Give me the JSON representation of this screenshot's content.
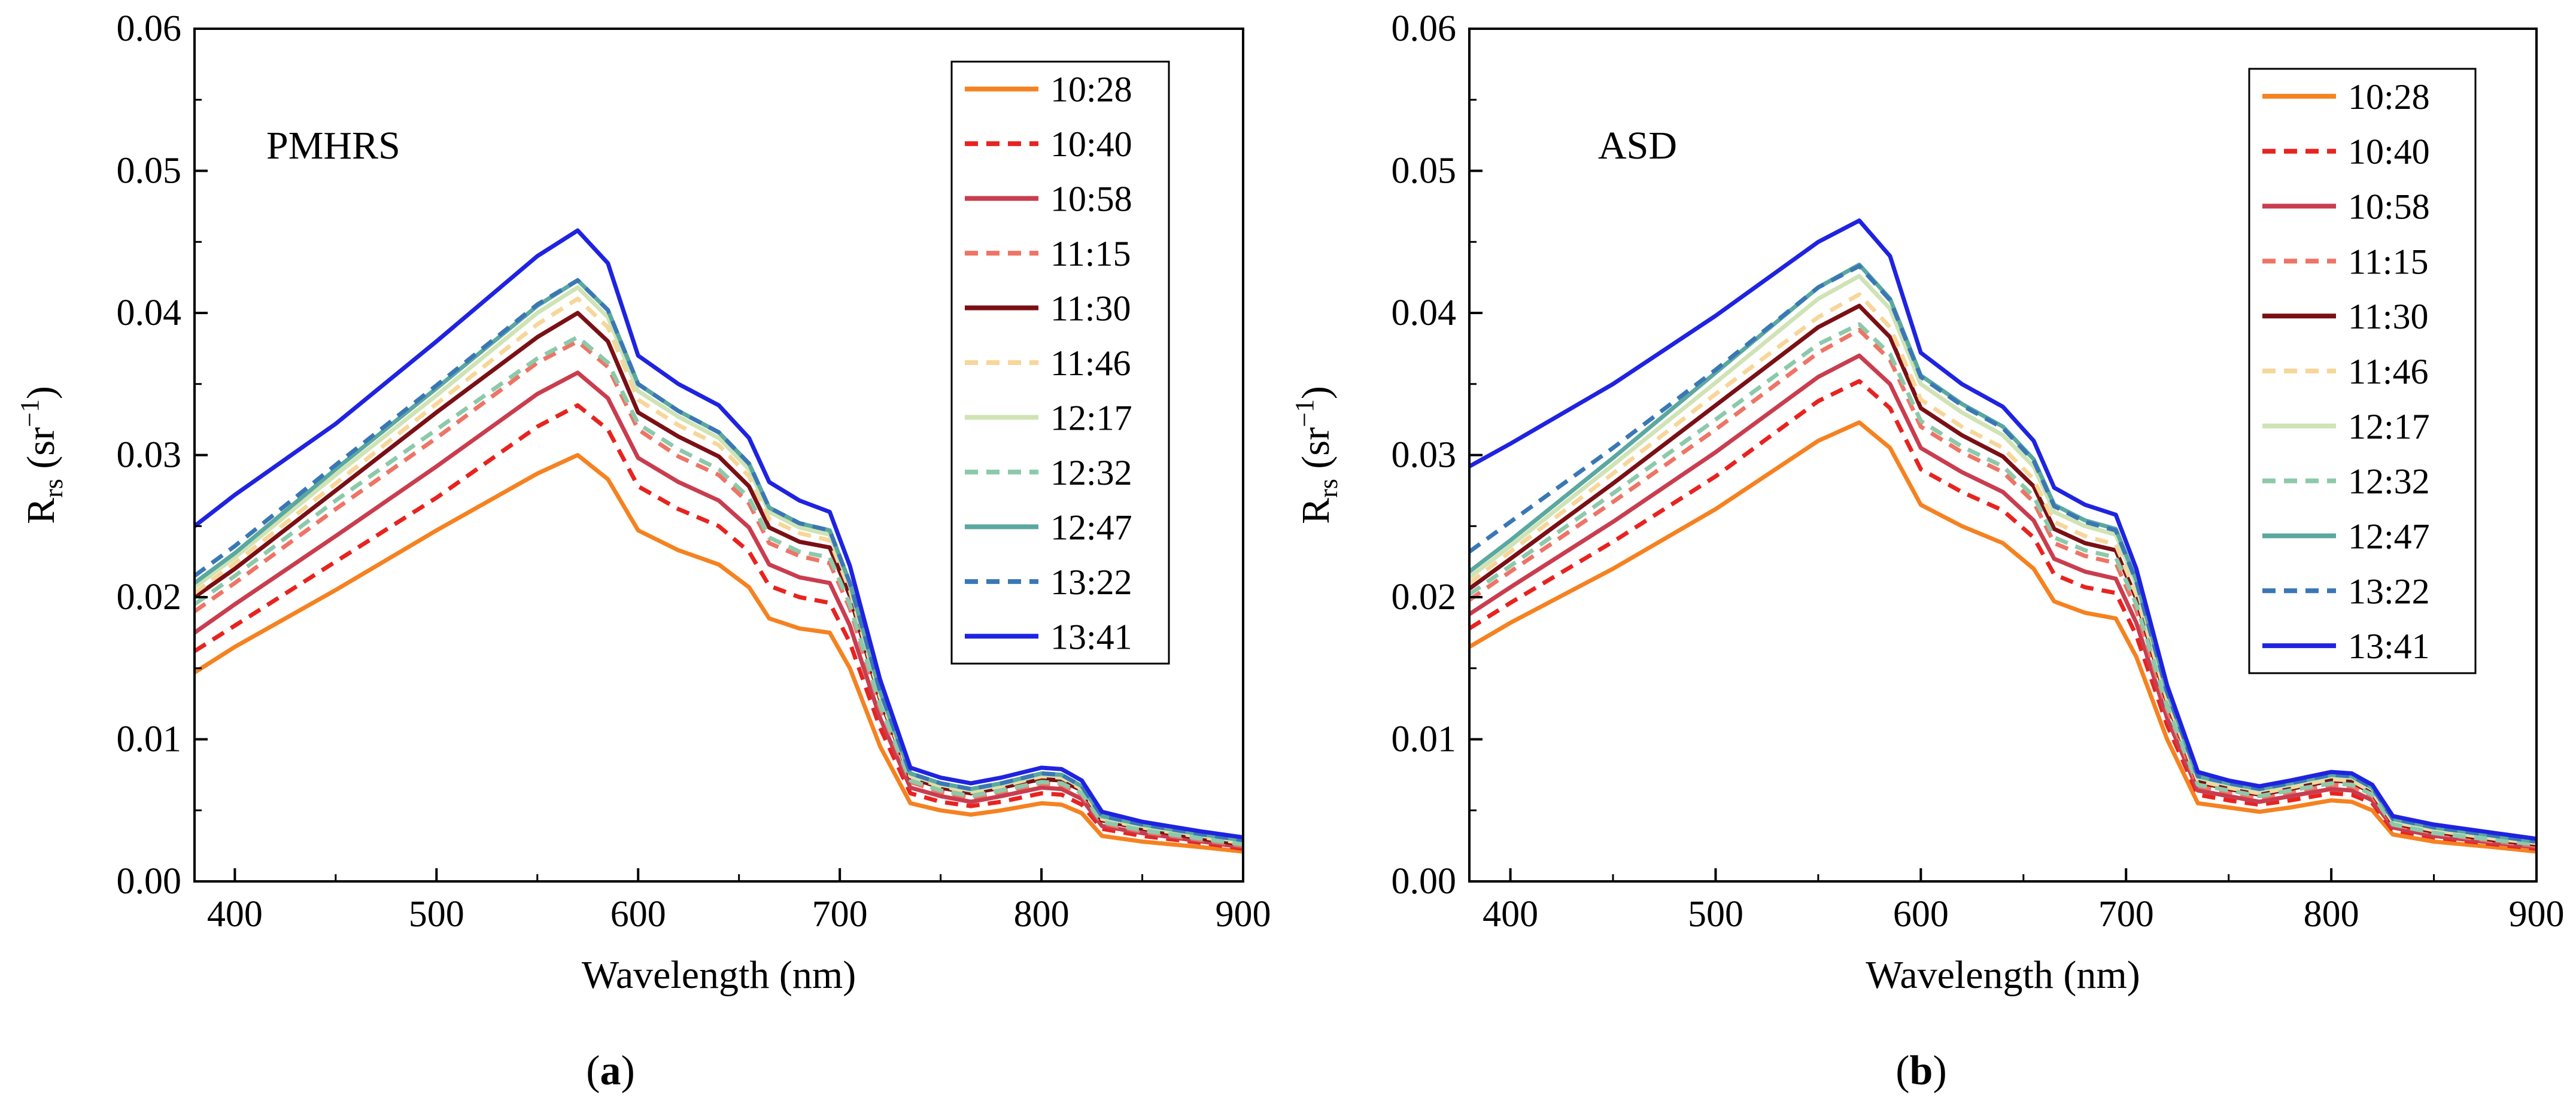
{
  "chart_data": [
    {
      "type": "line",
      "panel": "a",
      "annotation": "PMHRS",
      "caption_open": "(",
      "caption_letter": "a",
      "caption_close": ")",
      "xlabel": "Wavelength (nm)",
      "ylabel_main": "R",
      "ylabel_sub": "rs",
      "ylabel_unit_open": " (sr",
      "ylabel_unit_sup": "−1",
      "ylabel_unit_close": ")",
      "xlim": [
        380,
        900
      ],
      "ylim": [
        0,
        0.06
      ],
      "xticks": [
        400,
        500,
        600,
        700,
        800,
        900
      ],
      "yticks": [
        0.0,
        0.01,
        0.02,
        0.03,
        0.04,
        0.05,
        0.06
      ],
      "ytick_labels": [
        "0.00",
        "0.01",
        "0.02",
        "0.03",
        "0.04",
        "0.05",
        "0.06"
      ],
      "grid": false,
      "legend_position": "top-right",
      "x": [
        380,
        400,
        450,
        500,
        550,
        570,
        585,
        600,
        620,
        640,
        655,
        665,
        680,
        695,
        705,
        720,
        735,
        750,
        765,
        780,
        800,
        810,
        820,
        830,
        850,
        880,
        900
      ],
      "series": [
        {
          "name": "10:28",
          "color": "#f58220",
          "dash": "solid",
          "values": [
            0.0147,
            0.0165,
            0.0205,
            0.0247,
            0.0287,
            0.03,
            0.0283,
            0.0247,
            0.0233,
            0.0223,
            0.0207,
            0.0185,
            0.0178,
            0.0175,
            0.015,
            0.0095,
            0.0055,
            0.005,
            0.0047,
            0.005,
            0.0055,
            0.0054,
            0.0048,
            0.0032,
            0.0028,
            0.0024,
            0.0021
          ]
        },
        {
          "name": "10:40",
          "color": "#e8231f",
          "dash": "dashed",
          "values": [
            0.0162,
            0.018,
            0.0225,
            0.027,
            0.032,
            0.0335,
            0.0318,
            0.0278,
            0.0262,
            0.025,
            0.0232,
            0.0208,
            0.02,
            0.0196,
            0.0168,
            0.0108,
            0.0062,
            0.0056,
            0.0053,
            0.0056,
            0.0062,
            0.0061,
            0.0054,
            0.0037,
            0.0032,
            0.0027,
            0.0023
          ]
        },
        {
          "name": "10:58",
          "color": "#c93d4f",
          "dash": "solid",
          "values": [
            0.0175,
            0.0195,
            0.0243,
            0.0292,
            0.0343,
            0.0358,
            0.034,
            0.0298,
            0.0281,
            0.0268,
            0.0249,
            0.0223,
            0.0214,
            0.021,
            0.018,
            0.0115,
            0.0066,
            0.006,
            0.0056,
            0.006,
            0.0066,
            0.0065,
            0.0058,
            0.0039,
            0.0034,
            0.0028,
            0.0024
          ]
        },
        {
          "name": "11:15",
          "color": "#ee7466",
          "dash": "dashed",
          "values": [
            0.019,
            0.021,
            0.0262,
            0.0312,
            0.0365,
            0.038,
            0.0362,
            0.0318,
            0.0299,
            0.0286,
            0.0266,
            0.0238,
            0.0229,
            0.0224,
            0.0192,
            0.0122,
            0.007,
            0.0063,
            0.0059,
            0.0063,
            0.0069,
            0.0068,
            0.0061,
            0.0041,
            0.0035,
            0.0029,
            0.0025
          ]
        },
        {
          "name": "11:30",
          "color": "#7a1015",
          "dash": "solid",
          "values": [
            0.02,
            0.022,
            0.0275,
            0.033,
            0.0383,
            0.04,
            0.038,
            0.033,
            0.0313,
            0.0299,
            0.0278,
            0.0249,
            0.0239,
            0.0235,
            0.0201,
            0.0128,
            0.0073,
            0.0066,
            0.0062,
            0.0066,
            0.0072,
            0.0071,
            0.0064,
            0.0043,
            0.0037,
            0.003,
            0.0026
          ]
        },
        {
          "name": "11:46",
          "color": "#f7d69a",
          "dash": "dashed",
          "values": [
            0.0203,
            0.0224,
            0.028,
            0.0336,
            0.0392,
            0.041,
            0.039,
            0.0339,
            0.0321,
            0.0307,
            0.0285,
            0.0255,
            0.0245,
            0.024,
            0.0205,
            0.013,
            0.0074,
            0.0067,
            0.0063,
            0.0067,
            0.0074,
            0.0073,
            0.0065,
            0.0044,
            0.0038,
            0.0031,
            0.0027
          ]
        },
        {
          "name": "12:17",
          "color": "#cfe3b5",
          "dash": "solid",
          "values": [
            0.0207,
            0.0228,
            0.0286,
            0.0342,
            0.04,
            0.0418,
            0.0397,
            0.0345,
            0.0327,
            0.0312,
            0.029,
            0.026,
            0.0249,
            0.0244,
            0.0208,
            0.0132,
            0.0075,
            0.0068,
            0.0064,
            0.0068,
            0.0075,
            0.0074,
            0.0066,
            0.0045,
            0.0039,
            0.0032,
            0.0028
          ]
        },
        {
          "name": "12:32",
          "color": "#8cc9ab",
          "dash": "dashed",
          "values": [
            0.0195,
            0.0215,
            0.0268,
            0.0318,
            0.0368,
            0.0383,
            0.0365,
            0.0322,
            0.0304,
            0.029,
            0.027,
            0.0242,
            0.0232,
            0.0228,
            0.0195,
            0.0124,
            0.0071,
            0.0064,
            0.006,
            0.0064,
            0.007,
            0.0069,
            0.0062,
            0.0042,
            0.0036,
            0.003,
            0.0026
          ]
        },
        {
          "name": "12:47",
          "color": "#5aa8a0",
          "dash": "solid",
          "values": [
            0.021,
            0.0231,
            0.029,
            0.0347,
            0.0405,
            0.0423,
            0.0402,
            0.035,
            0.0331,
            0.0316,
            0.0294,
            0.0263,
            0.0252,
            0.0247,
            0.021,
            0.0134,
            0.0076,
            0.0069,
            0.0065,
            0.0069,
            0.0076,
            0.0075,
            0.0067,
            0.0046,
            0.004,
            0.0033,
            0.0029
          ]
        },
        {
          "name": "13:22",
          "color": "#3a77b4",
          "dash": "dashed",
          "values": [
            0.0215,
            0.0236,
            0.0293,
            0.0349,
            0.0406,
            0.0423,
            0.0402,
            0.035,
            0.0331,
            0.0316,
            0.0294,
            0.0263,
            0.0252,
            0.0247,
            0.021,
            0.0134,
            0.0076,
            0.0069,
            0.0065,
            0.0069,
            0.0076,
            0.0075,
            0.0067,
            0.0046,
            0.004,
            0.0033,
            0.0029
          ]
        },
        {
          "name": "13:41",
          "color": "#1f23e0",
          "dash": "solid",
          "values": [
            0.025,
            0.0272,
            0.0322,
            0.038,
            0.044,
            0.0458,
            0.0435,
            0.037,
            0.035,
            0.0335,
            0.0312,
            0.0281,
            0.0268,
            0.026,
            0.0222,
            0.0142,
            0.008,
            0.0073,
            0.0069,
            0.0073,
            0.008,
            0.0079,
            0.0071,
            0.0049,
            0.0042,
            0.0035,
            0.0031
          ]
        }
      ]
    },
    {
      "type": "line",
      "panel": "b",
      "annotation": "ASD",
      "caption_open": "(",
      "caption_letter": "b",
      "caption_close": ")",
      "xlabel": "Wavelength (nm)",
      "ylabel_main": "R",
      "ylabel_sub": "rs",
      "ylabel_unit_open": " (sr",
      "ylabel_unit_sup": "−1",
      "ylabel_unit_close": ")",
      "xlim": [
        380,
        900
      ],
      "ylim": [
        0,
        0.06
      ],
      "xticks": [
        400,
        500,
        600,
        700,
        800,
        900
      ],
      "yticks": [
        0.0,
        0.01,
        0.02,
        0.03,
        0.04,
        0.05,
        0.06
      ],
      "ytick_labels": [
        "0.00",
        "0.01",
        "0.02",
        "0.03",
        "0.04",
        "0.05",
        "0.06"
      ],
      "grid": false,
      "legend_position": "top-right",
      "x": [
        380,
        400,
        450,
        500,
        550,
        570,
        585,
        600,
        620,
        640,
        655,
        665,
        680,
        695,
        705,
        720,
        735,
        750,
        765,
        780,
        800,
        810,
        820,
        830,
        850,
        880,
        900
      ],
      "series": [
        {
          "name": "10:28",
          "color": "#f58220",
          "dash": "solid",
          "values": [
            0.0165,
            0.0182,
            0.022,
            0.0262,
            0.031,
            0.0323,
            0.0305,
            0.0265,
            0.025,
            0.0238,
            0.022,
            0.0197,
            0.0189,
            0.0185,
            0.0158,
            0.01,
            0.0055,
            0.0052,
            0.0049,
            0.0052,
            0.0057,
            0.0056,
            0.005,
            0.0033,
            0.0028,
            0.0024,
            0.0021
          ]
        },
        {
          "name": "10:40",
          "color": "#e8231f",
          "dash": "dashed",
          "values": [
            0.0178,
            0.0196,
            0.0239,
            0.0285,
            0.0338,
            0.0352,
            0.0333,
            0.029,
            0.0274,
            0.0261,
            0.0242,
            0.0216,
            0.0207,
            0.0203,
            0.0173,
            0.011,
            0.0061,
            0.0057,
            0.0054,
            0.0057,
            0.0062,
            0.0061,
            0.0055,
            0.0036,
            0.0031,
            0.0026,
            0.0023
          ]
        },
        {
          "name": "10:58",
          "color": "#c93d4f",
          "dash": "solid",
          "values": [
            0.0188,
            0.0207,
            0.0253,
            0.0302,
            0.0355,
            0.037,
            0.035,
            0.0305,
            0.0288,
            0.0274,
            0.0254,
            0.0227,
            0.0218,
            0.0213,
            0.0182,
            0.0115,
            0.0064,
            0.006,
            0.0056,
            0.006,
            0.0065,
            0.0064,
            0.0057,
            0.0038,
            0.0032,
            0.0027,
            0.0024
          ]
        },
        {
          "name": "11:15",
          "color": "#ee7466",
          "dash": "dashed",
          "values": [
            0.0198,
            0.0218,
            0.0267,
            0.0318,
            0.0372,
            0.0388,
            0.0367,
            0.032,
            0.0302,
            0.0288,
            0.0267,
            0.0238,
            0.0229,
            0.0224,
            0.0191,
            0.0121,
            0.0067,
            0.0063,
            0.0059,
            0.0063,
            0.0068,
            0.0067,
            0.006,
            0.004,
            0.0034,
            0.0028,
            0.0025
          ]
        },
        {
          "name": "11:30",
          "color": "#7a1015",
          "dash": "solid",
          "values": [
            0.0206,
            0.0227,
            0.028,
            0.0335,
            0.039,
            0.0405,
            0.0383,
            0.0333,
            0.0314,
            0.0299,
            0.0278,
            0.0248,
            0.0238,
            0.0233,
            0.0199,
            0.0126,
            0.007,
            0.0065,
            0.0061,
            0.0065,
            0.0071,
            0.007,
            0.0062,
            0.0041,
            0.0035,
            0.0029,
            0.0026
          ]
        },
        {
          "name": "11:46",
          "color": "#f7d69a",
          "dash": "dashed",
          "values": [
            0.021,
            0.0232,
            0.0287,
            0.0343,
            0.0397,
            0.0413,
            0.039,
            0.0339,
            0.032,
            0.0305,
            0.0283,
            0.0253,
            0.0243,
            0.0237,
            0.0202,
            0.0128,
            0.0071,
            0.0066,
            0.0062,
            0.0066,
            0.0072,
            0.0071,
            0.0063,
            0.0042,
            0.0036,
            0.003,
            0.0027
          ]
        },
        {
          "name": "12:17",
          "color": "#cfe3b5",
          "dash": "solid",
          "values": [
            0.0214,
            0.0236,
            0.0293,
            0.0351,
            0.041,
            0.0426,
            0.0403,
            0.035,
            0.033,
            0.0314,
            0.0292,
            0.026,
            0.025,
            0.0244,
            0.0208,
            0.0132,
            0.0073,
            0.0068,
            0.0064,
            0.0068,
            0.0074,
            0.0073,
            0.0065,
            0.0043,
            0.0037,
            0.0031,
            0.0028
          ]
        },
        {
          "name": "12:32",
          "color": "#8cc9ab",
          "dash": "dashed",
          "values": [
            0.0202,
            0.0222,
            0.0273,
            0.0325,
            0.0378,
            0.0392,
            0.0371,
            0.0324,
            0.0306,
            0.0292,
            0.0271,
            0.0242,
            0.0233,
            0.0228,
            0.0195,
            0.0123,
            0.0068,
            0.0064,
            0.006,
            0.0064,
            0.0069,
            0.0068,
            0.0061,
            0.004,
            0.0034,
            0.0029,
            0.0026
          ]
        },
        {
          "name": "12:47",
          "color": "#5aa8a0",
          "dash": "solid",
          "values": [
            0.0218,
            0.024,
            0.0298,
            0.0358,
            0.0418,
            0.0434,
            0.041,
            0.0356,
            0.0336,
            0.032,
            0.0297,
            0.0265,
            0.0254,
            0.0248,
            0.0212,
            0.0134,
            0.0074,
            0.0069,
            0.0065,
            0.0069,
            0.0075,
            0.0074,
            0.0066,
            0.0044,
            0.0038,
            0.0032,
            0.0028
          ]
        },
        {
          "name": "13:22",
          "color": "#3a77b4",
          "dash": "dashed",
          "values": [
            0.0232,
            0.0253,
            0.0305,
            0.036,
            0.0418,
            0.0433,
            0.0409,
            0.0355,
            0.0335,
            0.0319,
            0.0296,
            0.0264,
            0.0253,
            0.0247,
            0.0211,
            0.0133,
            0.0074,
            0.0069,
            0.0065,
            0.0069,
            0.0075,
            0.0074,
            0.0066,
            0.0044,
            0.0038,
            0.0032,
            0.0028
          ]
        },
        {
          "name": "13:41",
          "color": "#1f23e0",
          "dash": "solid",
          "values": [
            0.0292,
            0.0308,
            0.035,
            0.0398,
            0.045,
            0.0465,
            0.044,
            0.0372,
            0.035,
            0.0334,
            0.031,
            0.0277,
            0.0265,
            0.0258,
            0.022,
            0.0138,
            0.0077,
            0.0071,
            0.0067,
            0.0071,
            0.0077,
            0.0076,
            0.0068,
            0.0046,
            0.004,
            0.0034,
            0.003
          ]
        }
      ]
    }
  ]
}
